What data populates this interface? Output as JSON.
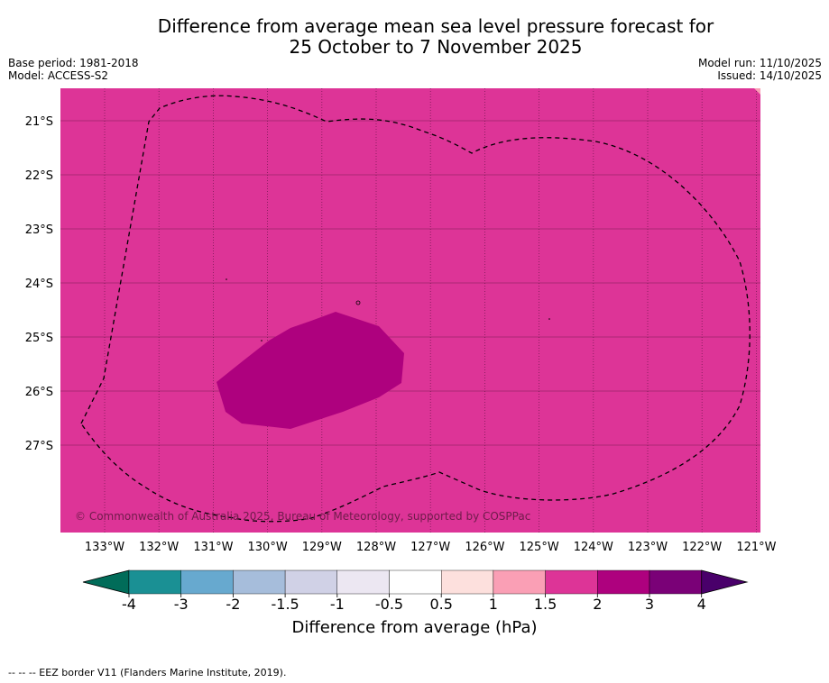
{
  "header": {
    "title_line1": "Difference from average mean sea level pressure forecast for",
    "title_line2": "25 October to 7 November 2025",
    "base_period": "Base period: 1981-2018",
    "model": "Model: ACCESS-S2",
    "model_run": "Model run: 11/10/2025",
    "issued": "Issued: 14/10/2025"
  },
  "map": {
    "lon_labels": [
      "133°W",
      "132°W",
      "131°W",
      "130°W",
      "129°W",
      "128°W",
      "127°W",
      "126°W",
      "125°W",
      "124°W",
      "123°W",
      "122°W",
      "121°W"
    ],
    "lat_labels": [
      "21°S",
      "22°S",
      "23°S",
      "24°S",
      "25°S",
      "26°S",
      "27°S"
    ],
    "background_color": "#dd3497",
    "anomaly_color": "#ae017e",
    "copyright": "© Commonwealth of Australia 2025, Bureau of Meteorology, supported by COSPPac"
  },
  "colorbar": {
    "title": "Difference from average (hPa)",
    "tick_labels": [
      "-4",
      "-3",
      "-2",
      "-1.5",
      "-1",
      "-0.5",
      "0.5",
      "1",
      "1.5",
      "2",
      "3",
      "4"
    ],
    "colors": [
      "#1a9094",
      "#67a9cf",
      "#a6bddb",
      "#d0d1e6",
      "#ece7f2",
      "#ffffff",
      "#fde0dd",
      "#fa9fb5",
      "#dd3497",
      "#ae017e",
      "#7a0177"
    ],
    "under_color": "#016c59",
    "over_color": "#49006a"
  },
  "footer": {
    "legend": "--  --  -- EEZ border V11 (Flanders Marine Institute, 2019)."
  }
}
